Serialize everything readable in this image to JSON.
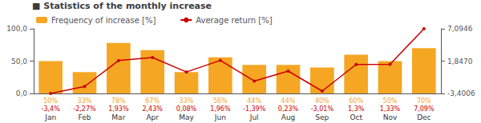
{
  "chart_data": {
    "type": "bar",
    "title": "■ Statistics of the monthly increase",
    "categories": [
      "Jan",
      "Feb",
      "Mar",
      "Apr",
      "May",
      "Jun",
      "Jul",
      "Aug",
      "Sep",
      "Oct",
      "Nov",
      "Dec"
    ],
    "series": [
      {
        "name": "Frequency of increase [%]",
        "type": "bar",
        "color": "#f5a623",
        "values": [
          50,
          33,
          78,
          67,
          33,
          56,
          44,
          44,
          40,
          60,
          50,
          70
        ],
        "value_labels": [
          "50%",
          "33%",
          "78%",
          "67%",
          "33%",
          "56%",
          "44%",
          "44%",
          "40%",
          "60%",
          "50%",
          "70%"
        ]
      },
      {
        "name": "Average return [%]",
        "type": "line",
        "color": "#cc0000",
        "marker": "circle",
        "axis": "y2",
        "values": [
          -3.4,
          -2.27,
          1.93,
          2.43,
          0.08,
          1.96,
          -1.39,
          0.23,
          -3.01,
          1.3,
          1.33,
          7.09
        ],
        "value_labels": [
          "-3,4%",
          "-2,27%",
          "1,93%",
          "2,43%",
          "0,08%",
          "1,96%",
          "-1,39%",
          "0,23%",
          "-3,01%",
          "1,3%",
          "1,33%",
          "7,09%"
        ]
      }
    ],
    "ylim": [
      0,
      100
    ],
    "yticks": [
      {
        "value": 0,
        "label": "0,0"
      },
      {
        "value": 50,
        "label": "50,0"
      },
      {
        "value": 100,
        "label": "100,0"
      }
    ],
    "y2lim": [
      -3.4006,
      7.0946
    ],
    "y2ticks": [
      {
        "value": -3.4006,
        "label": "-3,4006"
      },
      {
        "value": 1.847,
        "label": "1,8470"
      },
      {
        "value": 7.0946,
        "label": "7,0946"
      }
    ],
    "grid": false,
    "legend": "top",
    "data_labels": true
  }
}
